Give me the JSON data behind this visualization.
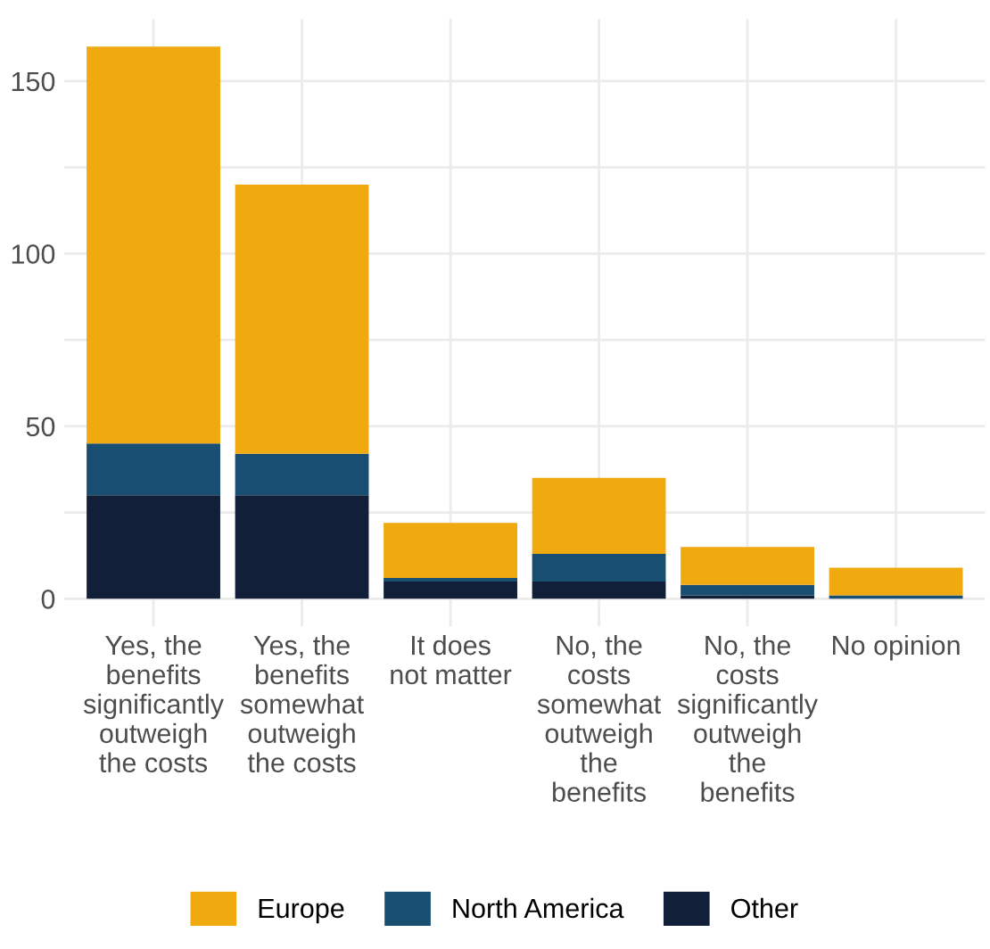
{
  "chart_data": {
    "type": "bar",
    "stacked": true,
    "categories": [
      "Yes, the\nbenefits\nsignificantly\noutweigh\nthe costs",
      "Yes, the\nbenefits\nsomewhat\noutweigh\nthe costs",
      "It does\nnot matter",
      "No, the\ncosts\nsomewhat\noutweigh\nthe\nbenefits",
      "No, the\ncosts\nsignificantly\noutweigh\nthe\nbenefits",
      "No opinion"
    ],
    "series": [
      {
        "name": "Other",
        "color": "#111f38",
        "values": [
          30,
          30,
          5,
          5,
          1,
          0
        ]
      },
      {
        "name": "North America",
        "color": "#184e72",
        "values": [
          15,
          12,
          1,
          8,
          3,
          1
        ]
      },
      {
        "name": "Europe",
        "color": "#f0a90f",
        "values": [
          115,
          78,
          16,
          22,
          11,
          8
        ]
      }
    ],
    "ylim": [
      -8,
      168
    ],
    "yticks": [
      0,
      {
        "value": 25,
        "label": null
      },
      50,
      {
        "value": 75,
        "label": null
      },
      100,
      {
        "value": 125,
        "label": null
      },
      150
    ],
    "grid": true,
    "legend": "bottom"
  }
}
